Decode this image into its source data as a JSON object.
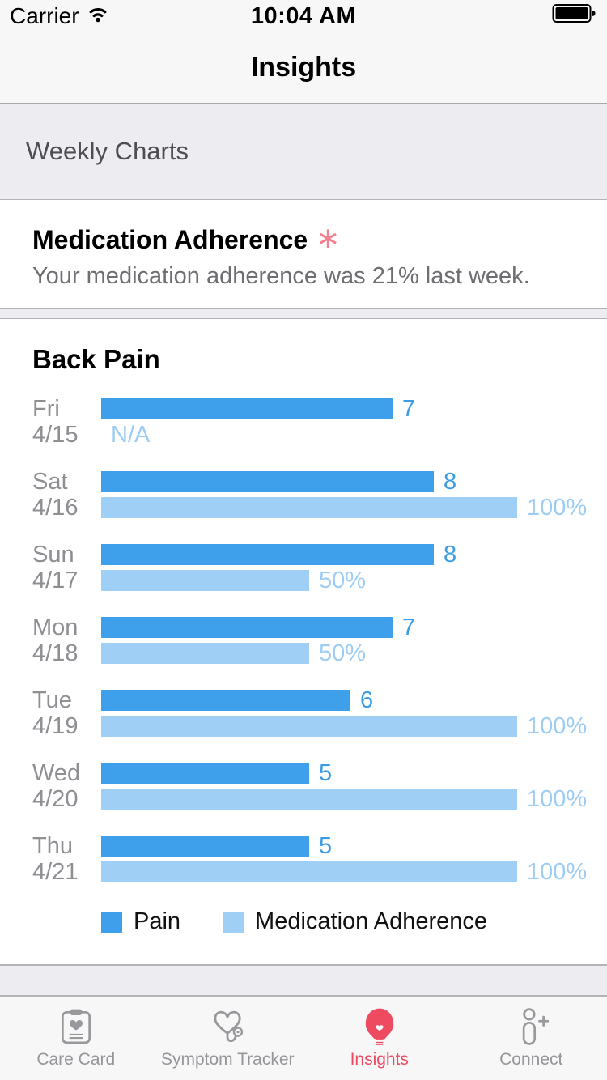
{
  "status_bar": {
    "carrier": "Carrier",
    "time": "10:04 AM",
    "wifi_icon": "wifi-icon",
    "battery_icon": "battery-full-icon"
  },
  "nav": {
    "title": "Insights"
  },
  "section_header": {
    "title": "Weekly Charts"
  },
  "adherence_card": {
    "title": "Medication Adherence",
    "marker": "∗",
    "subtitle": "Your medication adherence was 21% last week."
  },
  "chart_data": {
    "type": "bar",
    "orientation": "horizontal",
    "title": "Back Pain",
    "categories": [
      "Fri 4/15",
      "Sat 4/16",
      "Sun 4/17",
      "Mon 4/18",
      "Tue 4/19",
      "Wed 4/20",
      "Thu 4/21"
    ],
    "series": [
      {
        "name": "Pain",
        "values": [
          7,
          8,
          8,
          7,
          6,
          5,
          5
        ],
        "max": 10,
        "color": "#3ea0ea"
      },
      {
        "name": "Medication Adherence",
        "values": [
          null,
          100,
          50,
          50,
          100,
          100,
          100
        ],
        "max": 100,
        "color": "#9fcff5"
      }
    ],
    "rows": [
      {
        "day": "Fri",
        "date": "4/15",
        "pain": 7,
        "pain_label": "7",
        "adherence": null,
        "adherence_label": "N/A"
      },
      {
        "day": "Sat",
        "date": "4/16",
        "pain": 8,
        "pain_label": "8",
        "adherence": 100,
        "adherence_label": "100%"
      },
      {
        "day": "Sun",
        "date": "4/17",
        "pain": 8,
        "pain_label": "8",
        "adherence": 50,
        "adherence_label": "50%"
      },
      {
        "day": "Mon",
        "date": "4/18",
        "pain": 7,
        "pain_label": "7",
        "adherence": 50,
        "adherence_label": "50%"
      },
      {
        "day": "Tue",
        "date": "4/19",
        "pain": 6,
        "pain_label": "6",
        "adherence": 100,
        "adherence_label": "100%"
      },
      {
        "day": "Wed",
        "date": "4/20",
        "pain": 5,
        "pain_label": "5",
        "adherence": 100,
        "adherence_label": "100%"
      },
      {
        "day": "Thu",
        "date": "4/21",
        "pain": 5,
        "pain_label": "5",
        "adherence": 100,
        "adherence_label": "100%"
      }
    ],
    "legend": [
      "Pain",
      "Medication Adherence"
    ],
    "legend_position": "bottom"
  },
  "colors": {
    "pain": "#3ea0ea",
    "adherence": "#9fcff5",
    "accent_red": "#ee4a60",
    "marker_pink": "#f2808d"
  },
  "tab_bar": {
    "items": [
      {
        "label": "Care Card",
        "icon": "clipboard-heart-icon",
        "active": false
      },
      {
        "label": "Symptom Tracker",
        "icon": "stethoscope-heart-icon",
        "active": false
      },
      {
        "label": "Insights",
        "icon": "lightbulb-heart-icon",
        "active": true
      },
      {
        "label": "Connect",
        "icon": "person-add-icon",
        "active": false
      }
    ]
  }
}
